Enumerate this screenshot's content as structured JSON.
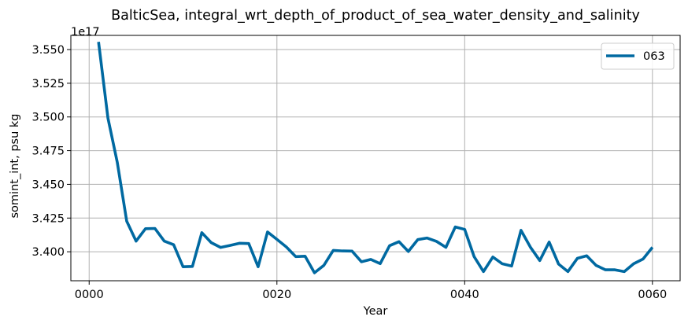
{
  "chart_data": {
    "type": "line",
    "title": "BalticSea, integral_wrt_depth_of_product_of_sea_water_density_and_salinity",
    "xlabel": "Year",
    "ylabel": "somint_int, psu kg",
    "offset_label": "1e17",
    "xlim": [
      -1.95,
      62.95
    ],
    "ylim": [
      3.3785,
      3.5605
    ],
    "xticks": [
      0,
      20,
      40,
      60
    ],
    "xtick_labels": [
      "0000",
      "0020",
      "0040",
      "0060"
    ],
    "yticks": [
      3.4,
      3.425,
      3.45,
      3.475,
      3.5,
      3.525,
      3.55
    ],
    "ytick_labels": [
      "3.400",
      "3.425",
      "3.450",
      "3.475",
      "3.500",
      "3.525",
      "3.550"
    ],
    "grid": true,
    "legend_position": "upper right",
    "series": [
      {
        "name": "063",
        "color": "#0069a1",
        "x": [
          1,
          2,
          3,
          4,
          5,
          6,
          7,
          8,
          9,
          10,
          11,
          12,
          13,
          14,
          15,
          16,
          17,
          18,
          19,
          20,
          21,
          22,
          23,
          24,
          25,
          26,
          27,
          28,
          29,
          30,
          31,
          32,
          33,
          34,
          35,
          36,
          37,
          38,
          39,
          40,
          41,
          42,
          43,
          44,
          45,
          46,
          47,
          48,
          49,
          50,
          51,
          52,
          53,
          54,
          55,
          56,
          57,
          58,
          59,
          60
        ],
        "values": [
          3.5557,
          3.4992,
          3.4662,
          3.4227,
          3.4079,
          3.4171,
          3.4173,
          3.4079,
          3.4052,
          3.3889,
          3.3891,
          3.4142,
          3.4068,
          3.4032,
          3.4047,
          3.4063,
          3.4061,
          3.3889,
          3.4147,
          3.4092,
          3.4036,
          3.3964,
          3.3967,
          3.3844,
          3.3899,
          3.401,
          3.4006,
          3.4005,
          3.3926,
          3.3943,
          3.3912,
          3.4045,
          3.4075,
          3.4002,
          3.409,
          3.4102,
          3.4077,
          3.4033,
          3.4184,
          3.4166,
          3.3965,
          3.3853,
          3.3961,
          3.3911,
          3.3894,
          3.4159,
          3.4034,
          3.3935,
          3.4072,
          3.3909,
          3.3853,
          3.3951,
          3.397,
          3.3899,
          3.3866,
          3.3866,
          3.3853,
          3.3911,
          3.3946,
          3.4033
        ]
      }
    ]
  }
}
